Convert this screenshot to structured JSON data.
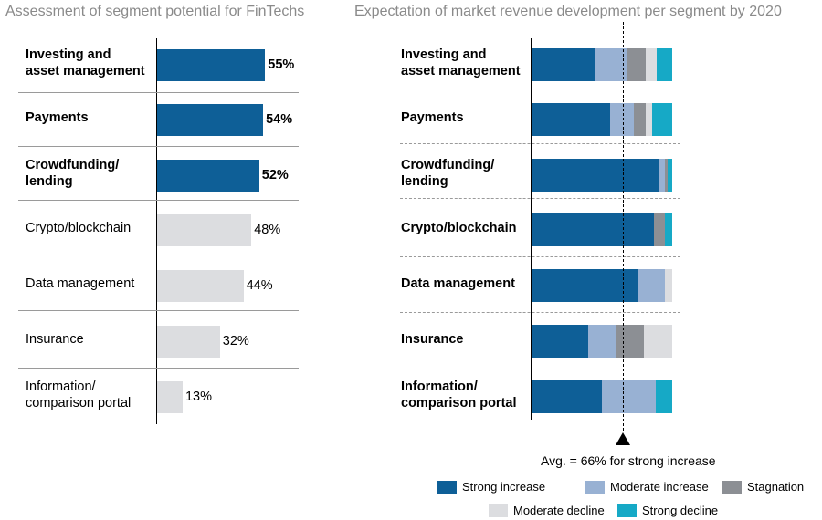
{
  "chart_data": [
    {
      "type": "bar",
      "orientation": "horizontal",
      "title": "Assessment of segment potential for FinTechs",
      "categories": [
        "Investing and asset management",
        "Payments",
        "Crowdfunding/ lending",
        "Crypto/blockchain",
        "Data management",
        "Insurance",
        "Information/ comparison portal"
      ],
      "values": [
        55,
        54,
        52,
        48,
        44,
        32,
        13
      ],
      "value_labels": [
        "55%",
        "54%",
        "52%",
        "48%",
        "44%",
        "32%",
        "13%"
      ],
      "highlighted": [
        true,
        true,
        true,
        false,
        false,
        false,
        false
      ],
      "xlim": [
        0,
        100
      ],
      "colors": {
        "highlight": "#0e5f97",
        "normal": "#dcdde0"
      }
    },
    {
      "type": "bar",
      "stacked": true,
      "orientation": "horizontal",
      "title": "Expectation of market revenue development per segment by 2020",
      "categories": [
        "Investing and asset management",
        "Payments",
        "Crowdfunding/ lending",
        "Crypto/blockchain",
        "Data management",
        "Insurance",
        "Information/ comparison portal"
      ],
      "xlim": [
        0,
        100
      ],
      "average": {
        "value": 66,
        "label": "Avg. = 66% for strong increase"
      },
      "series": [
        {
          "name": "Strong increase",
          "color": "#0e5f97",
          "values": [
            45,
            56,
            90,
            87,
            76,
            40,
            50
          ]
        },
        {
          "name": "Moderate increase",
          "color": "#98b1d3",
          "values": [
            23,
            17,
            5,
            0,
            19,
            20,
            38
          ]
        },
        {
          "name": "Stagnation",
          "color": "#8c8f94",
          "values": [
            13,
            8,
            2,
            8,
            0,
            20,
            0
          ]
        },
        {
          "name": "Moderate decline",
          "color": "#dcdde0",
          "values": [
            8,
            5,
            0,
            0,
            5,
            20,
            0
          ]
        },
        {
          "name": "Strong decline",
          "color": "#16a9c6",
          "values": [
            11,
            14,
            3,
            5,
            0,
            0,
            12
          ]
        }
      ]
    }
  ],
  "left_labels": [
    {
      "line1": "Investing and",
      "line2": "asset management"
    },
    {
      "line1": "Payments",
      "line2": ""
    },
    {
      "line1": "Crowdfunding/",
      "line2": "lending"
    },
    {
      "line1": "Crypto/blockchain",
      "line2": ""
    },
    {
      "line1": "Data management",
      "line2": ""
    },
    {
      "line1": "Insurance",
      "line2": ""
    },
    {
      "line1": "Information/",
      "line2": "comparison portal"
    }
  ],
  "right_labels": [
    {
      "line1": "Investing and",
      "line2": "asset management"
    },
    {
      "line1": "Payments",
      "line2": ""
    },
    {
      "line1": "Crowdfunding/",
      "line2": "lending"
    },
    {
      "line1": "Crypto/blockchain",
      "line2": ""
    },
    {
      "line1": "Data management",
      "line2": ""
    },
    {
      "line1": "Insurance",
      "line2": ""
    },
    {
      "line1": "Information/",
      "line2": "comparison portal"
    }
  ]
}
